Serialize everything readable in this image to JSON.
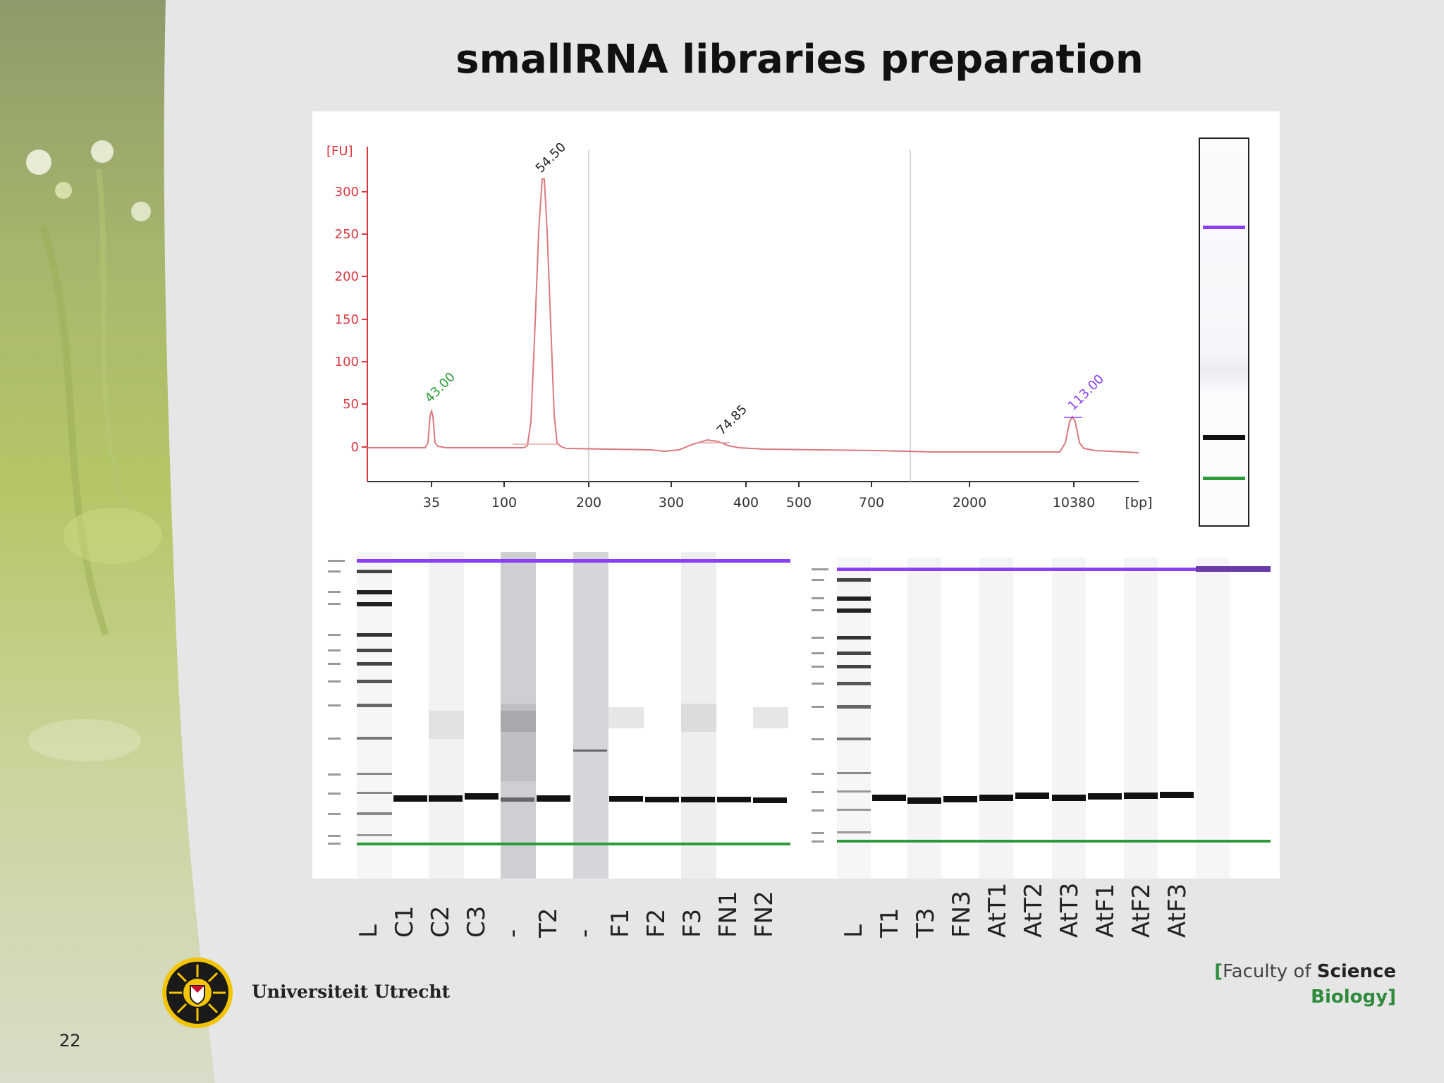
{
  "slide": {
    "title": "smallRNA libraries preparation",
    "page_number": "22"
  },
  "electropherogram": {
    "y_axis_unit": "[FU]",
    "x_axis_unit": "[bp]",
    "y_ticks": [
      "300",
      "250",
      "200",
      "150",
      "100",
      "50",
      "0"
    ],
    "x_ticks": [
      "35",
      "100",
      "200",
      "300",
      "400",
      "500",
      "700",
      "2000",
      "10380"
    ],
    "peak_labels": {
      "lower_marker": "43.00",
      "main_peak": "54.50",
      "broad_peak": "74.85",
      "upper_marker": "113.00"
    }
  },
  "chart_data": {
    "type": "line",
    "ylabel": "[FU]",
    "xlabel": "[bp]",
    "ylim": [
      0,
      300
    ],
    "peaks": [
      {
        "label": "43.00",
        "size_bp": 35,
        "fu": 40
      },
      {
        "label": "54.50",
        "size_bp": 145,
        "fu": 310
      },
      {
        "label": "74.85",
        "size_bp": 380,
        "fu": 10
      },
      {
        "label": "113.00",
        "size_bp": 10380,
        "fu": 33
      }
    ]
  },
  "gel_left": {
    "lanes": [
      "L",
      "C1",
      "C2",
      "C3",
      "-",
      "T2",
      "-",
      "F1",
      "F2",
      "F3",
      "FN1",
      "FN2"
    ]
  },
  "gel_right": {
    "lanes": [
      "L",
      "T1",
      "T3",
      "FN3",
      "AtT1",
      "AtT2",
      "AtT3",
      "AtF1",
      "AtF2",
      "AtF3",
      "",
      ""
    ]
  },
  "footer": {
    "university": "Universiteit Utrecht",
    "faculty_open": "[",
    "faculty_light": "Faculty of ",
    "faculty_bold": "Science",
    "department": "Biology",
    "faculty_close": "]"
  },
  "colors": {
    "axis_red": "#d9363e",
    "upper_marker": "#8a3ff2",
    "lower_marker": "#2f9a3a",
    "accent_green": "#2e8b3c"
  }
}
